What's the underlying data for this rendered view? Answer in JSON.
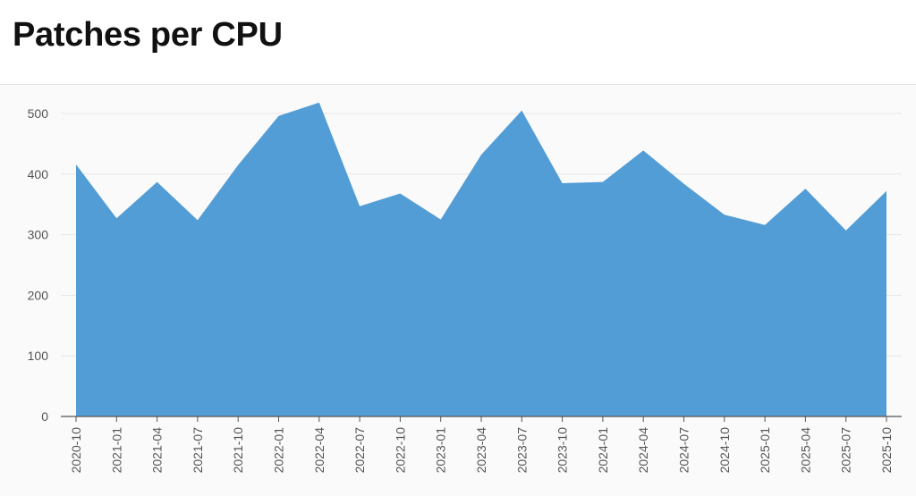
{
  "page": {
    "title": "Patches per CPU"
  },
  "chart_data": {
    "type": "area",
    "title": "Patches per CPU",
    "xlabel": "",
    "ylabel": "",
    "ylim": [
      0,
      550
    ],
    "yticks": [
      0,
      100,
      200,
      300,
      400,
      500
    ],
    "grid": true,
    "legend": "none",
    "fill_color": "#529dd6",
    "categories": [
      "2020-10",
      "2021-01",
      "2021-04",
      "2021-07",
      "2021-10",
      "2022-01",
      "2022-04",
      "2022-07",
      "2022-10",
      "2023-01",
      "2023-04",
      "2023-07",
      "2023-10",
      "2024-01",
      "2024-04",
      "2024-07",
      "2024-10",
      "2025-01",
      "2025-04",
      "2025-07",
      "2025-10"
    ],
    "values": [
      416,
      327,
      387,
      324,
      415,
      496,
      518,
      347,
      368,
      325,
      432,
      505,
      385,
      387,
      439,
      384,
      333,
      316,
      376,
      307,
      372
    ]
  }
}
